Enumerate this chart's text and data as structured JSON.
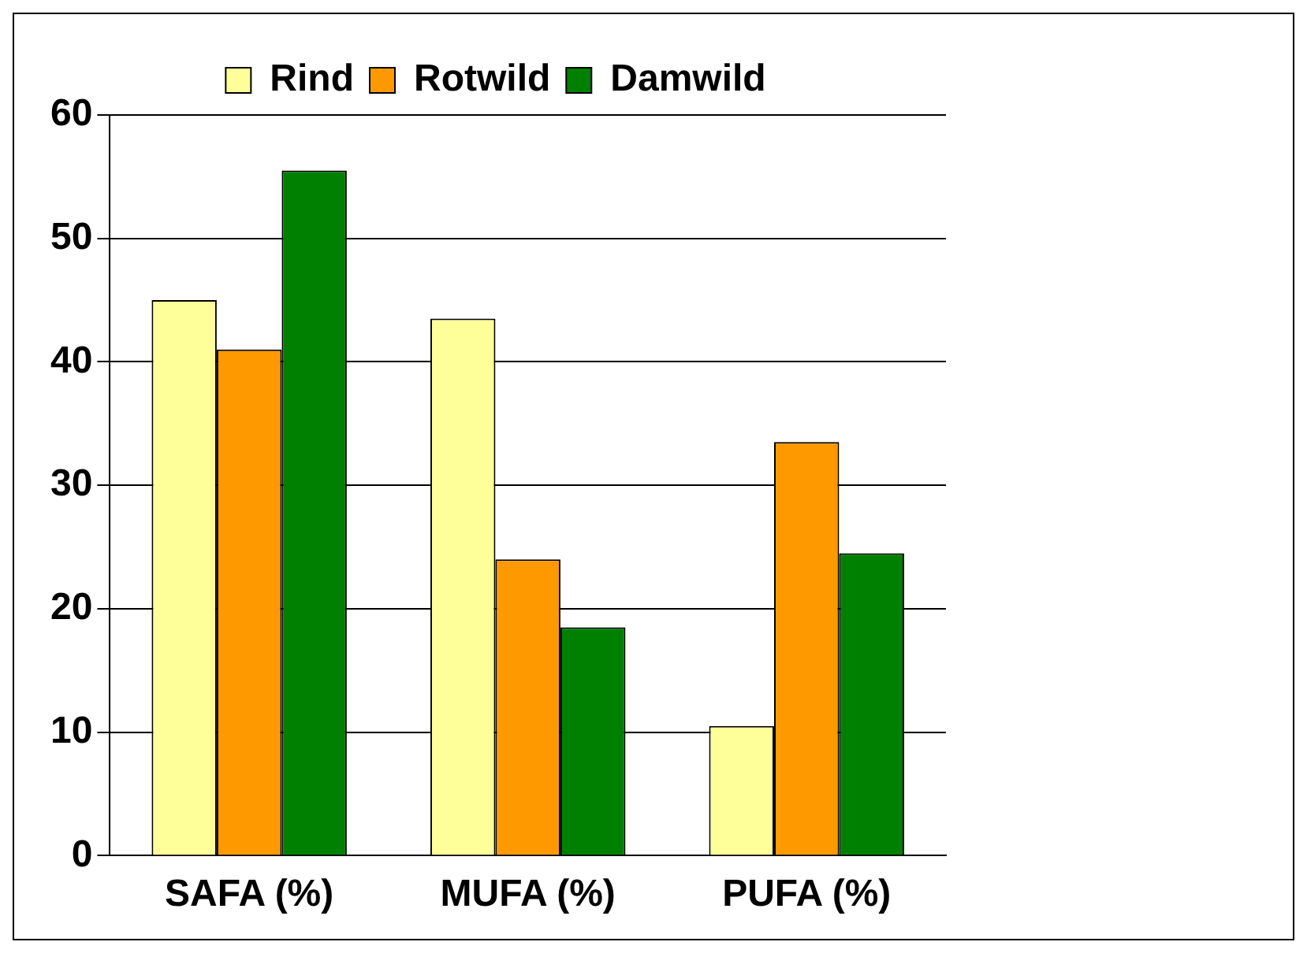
{
  "chart_data": {
    "type": "bar",
    "categories": [
      "SAFA (%)",
      "MUFA (%)",
      "PUFA (%)"
    ],
    "series": [
      {
        "name": "Rind",
        "color": "#ffff99",
        "values": [
          45,
          43.5,
          10.5
        ]
      },
      {
        "name": "Rotwild",
        "color": "#ff9900",
        "values": [
          41,
          24,
          33.5
        ]
      },
      {
        "name": "Damwild",
        "color": "#008000",
        "values": [
          55.5,
          18.5,
          24.5
        ]
      }
    ],
    "ylim": [
      0,
      60
    ],
    "yticks": [
      0,
      10,
      20,
      30,
      40,
      50,
      60
    ],
    "grid": "y",
    "legend": "top"
  }
}
